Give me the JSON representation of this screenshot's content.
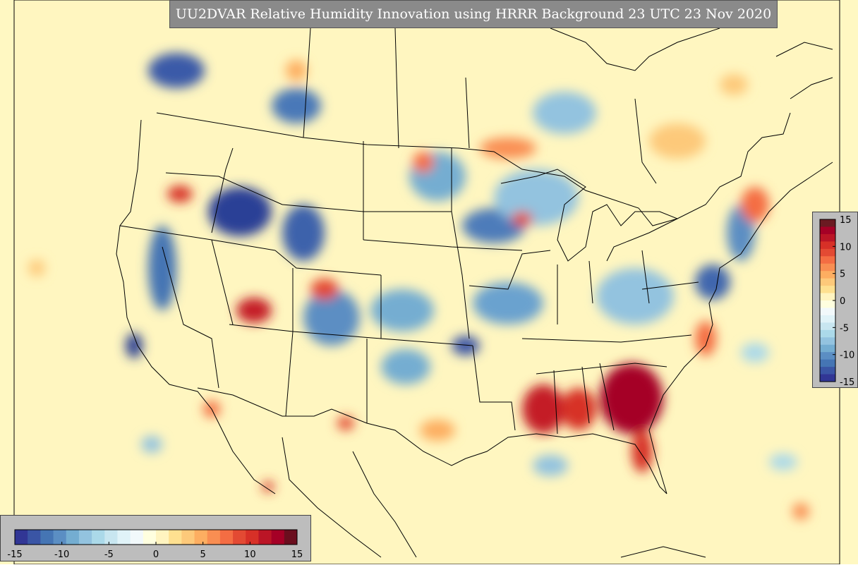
{
  "title": "UU2DVAR Relative Humidity Innovation using HRRR Background 23 UTC 23 Nov 2020",
  "colorbar": {
    "min": -15,
    "max": 15,
    "ticks_horizontal": [
      "-15",
      "-10",
      "-5",
      "0",
      "5",
      "10",
      "15"
    ],
    "ticks_vertical": [
      "15",
      "10",
      "5",
      "0",
      "-5",
      "-10",
      "-15"
    ],
    "colors": [
      "#313695",
      "#3a55a5",
      "#4575b4",
      "#5b8ec3",
      "#74add1",
      "#93c3df",
      "#abd9e9",
      "#c8e6f0",
      "#e0f3f8",
      "#f2f9fb",
      "#ffffdf",
      "#fff4c0",
      "#fee090",
      "#fdc97a",
      "#fdae61",
      "#f98e52",
      "#f46d43",
      "#e34a33",
      "#d73027",
      "#bb1526",
      "#a50026",
      "#6b0e1e"
    ],
    "colors_vertical_top": "#6b1a22"
  },
  "map": {
    "background_color": "#fff8c2",
    "border_color": "#000000"
  }
}
